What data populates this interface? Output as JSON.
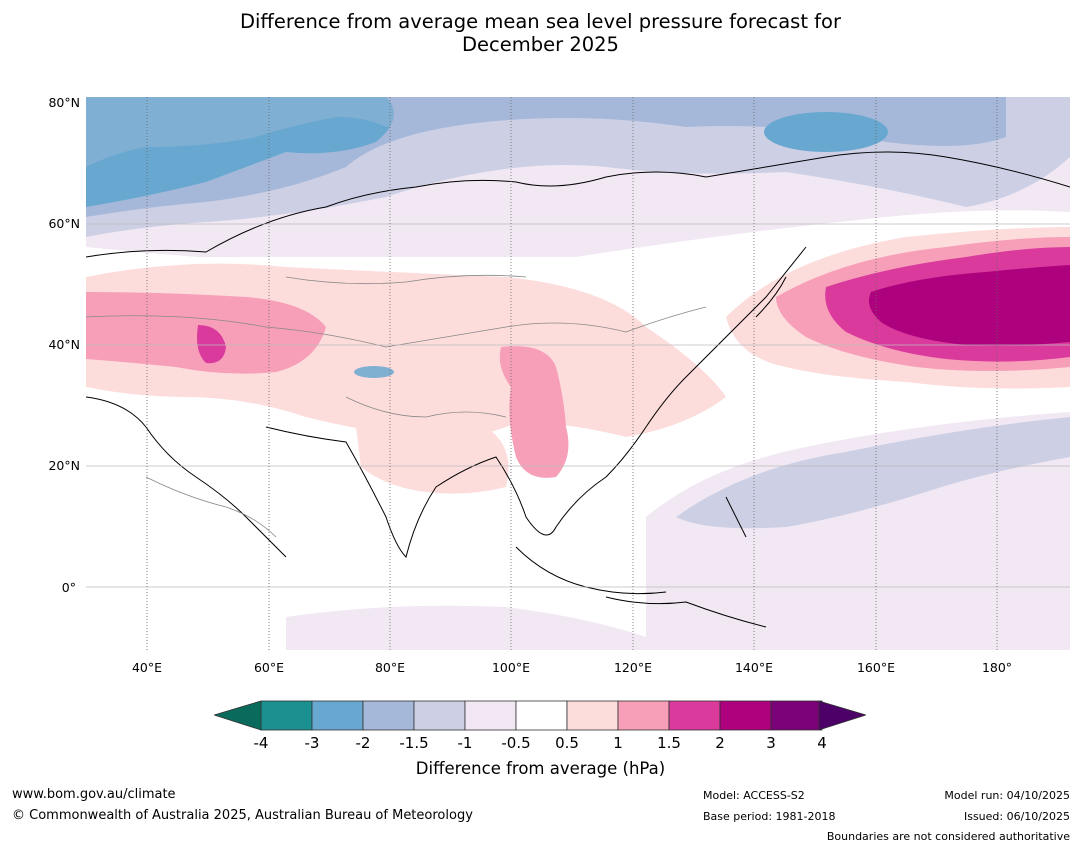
{
  "title": {
    "line1": "Difference from average mean sea level pressure forecast for",
    "line2": "December 2025"
  },
  "map": {
    "lat_labels": [
      "80°N",
      "60°N",
      "40°N",
      "20°N",
      "0°"
    ],
    "lon_labels": [
      "40°E",
      "60°E",
      "80°E",
      "100°E",
      "120°E",
      "140°E",
      "160°E",
      "180°"
    ]
  },
  "colorbar": {
    "ticks": [
      "-4",
      "-3",
      "-2",
      "-1.5",
      "-1",
      "-0.5",
      "0.5",
      "1",
      "1.5",
      "2",
      "3",
      "4"
    ],
    "colors": [
      "#1a9090",
      "#68a8d0",
      "#a5b8da",
      "#cdd0e5",
      "#f1e8f4",
      "#ffffff",
      "#fddcdc",
      "#f79fb8",
      "#d93a9c",
      "#ad017e",
      "#7a0177"
    ],
    "under_color": "#0a6b5c",
    "over_color": "#4d0068",
    "label": "Difference from average (hPa)"
  },
  "footer": {
    "website": "www.bom.gov.au/climate",
    "copyright": "© Commonwealth of Australia 2025, Australian Bureau of Meteorology",
    "model": "Model: ACCESS-S2",
    "base_period": "Base period: 1981-2018",
    "model_run": "Model run: 04/10/2025",
    "issued": "Issued: 06/10/2025",
    "disclaimer": "Boundaries are not considered authoritative"
  }
}
